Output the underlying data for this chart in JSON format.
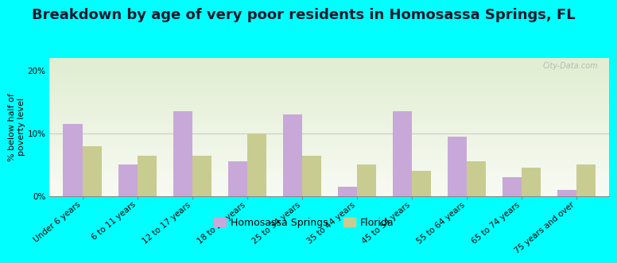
{
  "title": "Breakdown by age of very poor residents in Homosassa Springs, FL",
  "categories": [
    "Under 6 years",
    "6 to 11 years",
    "12 to 17 years",
    "18 to 24 years",
    "25 to 34 years",
    "35 to 44 years",
    "45 to 54 years",
    "55 to 64 years",
    "65 to 74 years",
    "75 years and over"
  ],
  "homosassa_values": [
    11.5,
    5.0,
    13.5,
    5.5,
    13.0,
    1.5,
    13.5,
    9.5,
    3.0,
    1.0
  ],
  "florida_values": [
    8.0,
    6.5,
    6.5,
    10.0,
    6.5,
    5.0,
    4.0,
    5.5,
    4.5,
    5.0
  ],
  "homosassa_color": "#c8a8d8",
  "florida_color": "#c8cc90",
  "background_color": "#00ffff",
  "ylabel": "% below half of\npoverty level",
  "ylim": [
    0,
    22
  ],
  "yticks": [
    0,
    10,
    20
  ],
  "ytick_labels": [
    "0%",
    "10%",
    "20%"
  ],
  "legend_homosassa": "Homosassa Springs",
  "legend_florida": "Florida",
  "title_fontsize": 13,
  "tick_fontsize": 7.5,
  "ylabel_fontsize": 8,
  "bar_width": 0.35,
  "watermark": "City-Data.com"
}
